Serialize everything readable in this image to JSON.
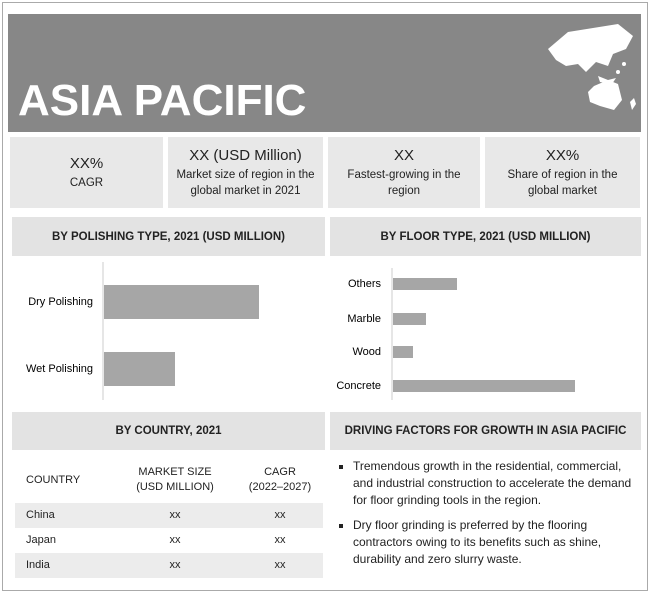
{
  "header": {
    "title": "ASIA PACIFIC"
  },
  "stats": [
    {
      "value": "XX%",
      "label": "CAGR"
    },
    {
      "value": "XX (USD Million)",
      "label": "Market size of region in the global market in 2021"
    },
    {
      "value": "XX",
      "label": "Fastest-growing in the region"
    },
    {
      "value": "XX%",
      "label": "Share of region in the global market"
    }
  ],
  "chart_data": [
    {
      "type": "bar",
      "title": "BY POLISHING TYPE, 2021 (USD MILLION)",
      "categories": [
        "Dry Polishing",
        "Wet Polishing"
      ],
      "values": [
        155,
        71
      ],
      "color": "#a6a6a6"
    },
    {
      "type": "bar",
      "title": "BY FLOOR TYPE, 2021 (USD MILLION)",
      "categories": [
        "Others",
        "Marble",
        "Wood",
        "Concrete"
      ],
      "values": [
        64,
        33,
        20,
        182
      ],
      "color": "#a6a6a6"
    }
  ],
  "country": {
    "title": "BY COUNTRY, 2021",
    "columns": [
      [
        "COUNTRY"
      ],
      [
        "MARKET SIZE",
        "(USD MILLION)"
      ],
      [
        "CAGR",
        "(2022–2027)"
      ]
    ],
    "rows": [
      [
        "China",
        "xx",
        "xx"
      ],
      [
        "Japan",
        "xx",
        "xx"
      ],
      [
        "India",
        "xx",
        "xx"
      ]
    ]
  },
  "drivers": {
    "title": "DRIVING FACTORS FOR GROWTH IN ASIA PACIFIC",
    "items": [
      "Tremendous growth in the residential, commercial, and industrial construction to accelerate the demand for floor grinding tools in the region.",
      "Dry floor grinding is preferred by the flooring contractors owing to its benefits such as shine, durability and zero slurry waste."
    ]
  }
}
